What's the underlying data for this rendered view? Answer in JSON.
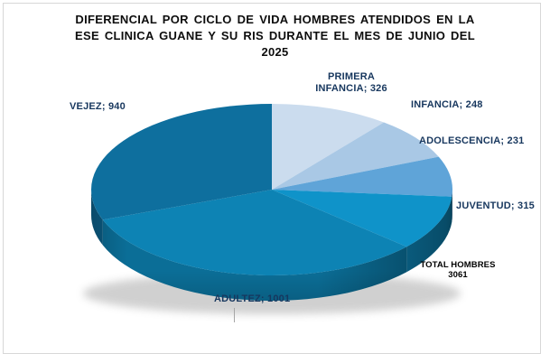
{
  "title": {
    "lines": [
      "DIFERENCIAL POR CICLO DE VIDA HOMBRES ATENDIDOS EN LA",
      "ESE CLINICA GUANE Y SU RIS DURANTE EL MES DE JUNIO DEL",
      "2025"
    ]
  },
  "labels": {
    "vejez": "VEJEZ; 940",
    "primera_infancia_line1": "PRIMERA",
    "primera_infancia_line2": "INFANCIA; 326",
    "infancia": "INFANCIA; 248",
    "adolescencia": "ADOLESCENCIA; 231",
    "juventud": "JUVENTUD; 315",
    "adultez": "ADULTEZ; 1001",
    "total_line1": "TOTAL HOMBRES",
    "total_line2": "3061"
  },
  "chart_data": {
    "type": "pie",
    "style": "3d",
    "title": "DIFERENCIAL POR CICLO DE VIDA HOMBRES ATENDIDOS EN LA ESE CLINICA GUANE Y SU RIS DURANTE EL MES DE JUNIO DEL 2025",
    "categories": [
      "PRIMERA INFANCIA",
      "INFANCIA",
      "ADOLESCENCIA",
      "JUVENTUD",
      "ADULTEZ",
      "VEJEZ"
    ],
    "values": [
      326,
      248,
      231,
      315,
      1001,
      940
    ],
    "total_label": "TOTAL HOMBRES",
    "total_value": 3061,
    "colors": [
      "#cbdcee",
      "#a9c8e5",
      "#5fa4d8",
      "#0f93c9",
      "#0d83b4",
      "#0e6f9e"
    ],
    "label_color": "#17375e",
    "start_angle_deg": 0,
    "direction": "clockwise",
    "legend": "none",
    "data_label_format": "category; value"
  }
}
